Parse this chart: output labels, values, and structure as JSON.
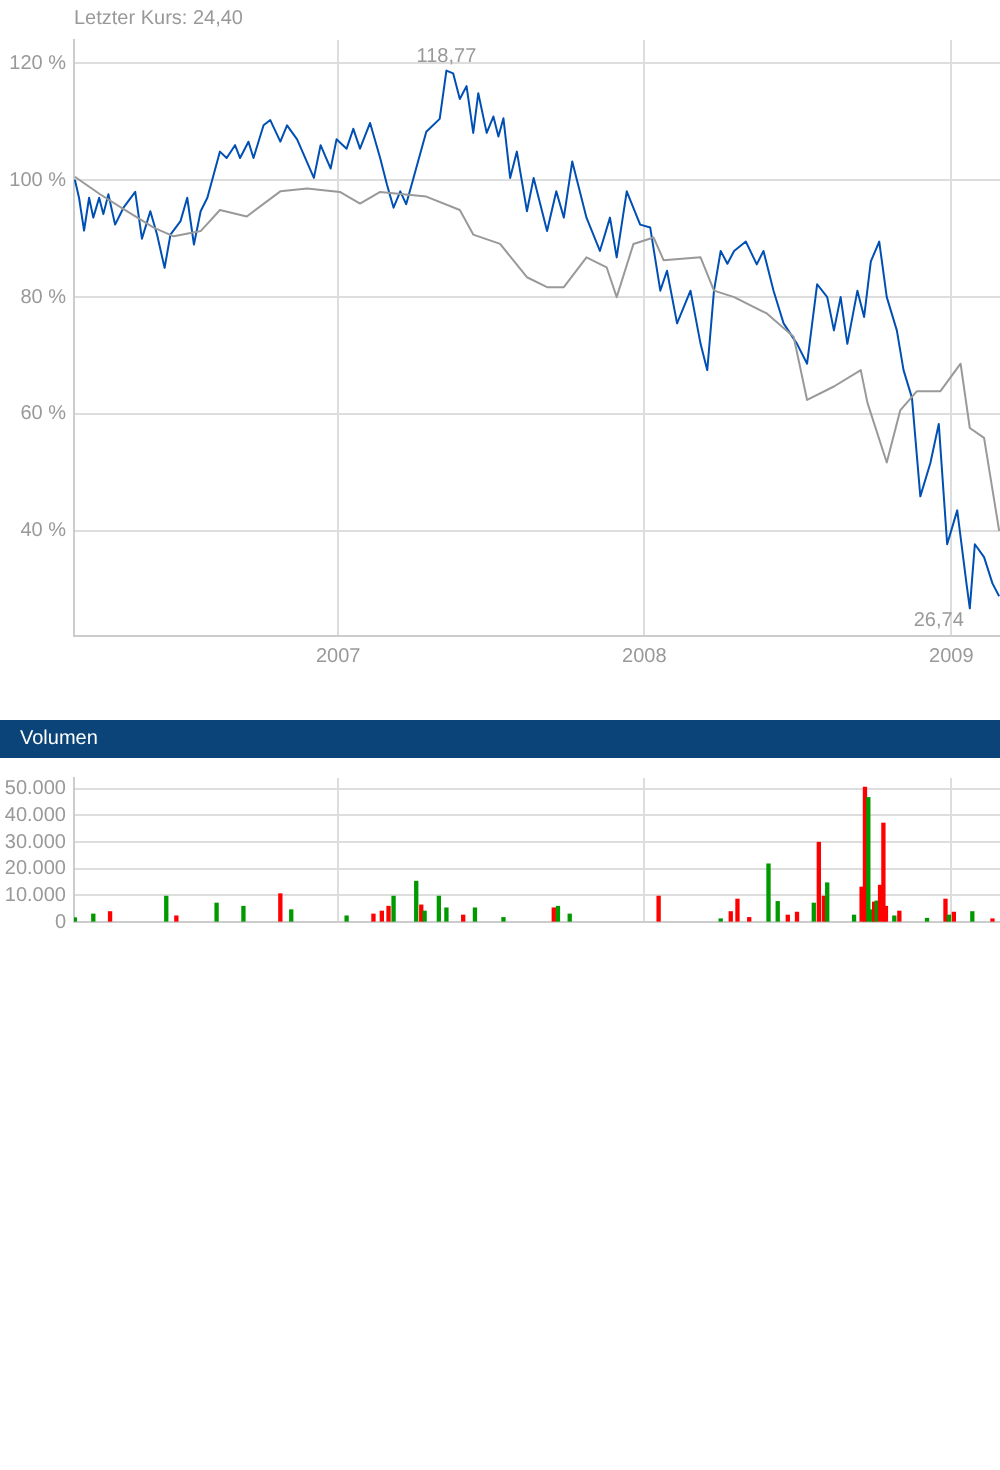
{
  "chart_data": [
    {
      "type": "line",
      "annotations": [
        "Letzter Kurs: 24,40",
        {
          "text": "118,77",
          "x": "2007-05-10",
          "y": 118.77
        },
        {
          "text": "26,74",
          "x": "2009-01-23",
          "y": 26.74
        }
      ],
      "xlim": [
        "2006-02-20",
        "2009-02-28"
      ],
      "xticks": [
        {
          "value": "2007-01-01",
          "label": "2007"
        },
        {
          "value": "2008-01-01",
          "label": "2008"
        },
        {
          "value": "2009-01-01",
          "label": "2009"
        }
      ],
      "ylim": [
        22,
        124
      ],
      "yticks": [
        {
          "value": 40,
          "label": "40 %"
        },
        {
          "value": 60,
          "label": "60 %"
        },
        {
          "value": 80,
          "label": "80 %"
        },
        {
          "value": 100,
          "label": "100 %"
        },
        {
          "value": 120,
          "label": "120 %"
        }
      ],
      "grid": true,
      "series": [
        {
          "color": "#999999",
          "x": [
            "2006-02-21",
            "2006-03-23",
            "2006-04-24",
            "2006-05-26",
            "2006-06-19",
            "2006-07-21",
            "2006-08-13",
            "2006-09-14",
            "2006-10-24",
            "2006-11-25",
            "2007-01-03",
            "2007-01-27",
            "2007-02-20",
            "2007-04-16",
            "2007-05-26",
            "2007-06-11",
            "2007-07-13",
            "2007-08-14",
            "2007-09-07",
            "2007-09-27",
            "2007-10-24",
            "2007-11-17",
            "2007-11-29",
            "2007-12-19",
            "2008-01-12",
            "2008-01-24",
            "2008-03-08",
            "2008-03-24",
            "2008-04-17",
            "2008-05-26",
            "2008-06-27",
            "2008-07-13",
            "2008-08-14",
            "2008-09-15",
            "2008-09-23",
            "2008-10-16",
            "2008-11-01",
            "2008-11-21",
            "2008-12-19",
            "2009-01-12",
            "2009-01-23",
            "2009-02-09",
            "2009-02-27"
          ],
          "values": [
            100.6,
            97.6,
            94.7,
            91.9,
            90.4,
            91.3,
            94.9,
            93.8,
            98.1,
            98.6,
            98,
            96,
            98,
            97.2,
            94.9,
            90.7,
            89.1,
            83.4,
            81.7,
            81.7,
            86.8,
            85.1,
            80,
            89.1,
            90.2,
            86.3,
            86.8,
            81.1,
            80,
            77.2,
            73.2,
            62.4,
            64.7,
            67.5,
            61.9,
            51.7,
            60.6,
            63.9,
            63.9,
            68.6,
            57.6,
            55.9,
            40
          ]
        },
        {
          "color": "#0050b4",
          "x": [
            "2006-02-21",
            "2006-02-26",
            "2006-03-04",
            "2006-03-10",
            "2006-03-15",
            "2006-03-22",
            "2006-03-27",
            "2006-04-02",
            "2006-04-10",
            "2006-04-20",
            "2006-05-04",
            "2006-05-12",
            "2006-05-22",
            "2006-05-30",
            "2006-06-08",
            "2006-06-15",
            "2006-06-27",
            "2006-07-05",
            "2006-07-13",
            "2006-07-21",
            "2006-07-29",
            "2006-08-13",
            "2006-08-21",
            "2006-08-31",
            "2006-09-06",
            "2006-09-16",
            "2006-09-22",
            "2006-10-04",
            "2006-10-12",
            "2006-10-24",
            "2006-11-01",
            "2006-11-13",
            "2006-12-03",
            "2006-12-11",
            "2006-12-23",
            "2006-12-30",
            "2007-01-11",
            "2007-01-19",
            "2007-01-27",
            "2007-02-08",
            "2007-02-20",
            "2007-02-28",
            "2007-03-08",
            "2007-03-16",
            "2007-03-23",
            "2007-04-01",
            "2007-04-16",
            "2007-05-02",
            "2007-05-10",
            "2007-05-18",
            "2007-05-26",
            "2007-06-03",
            "2007-06-11",
            "2007-06-17",
            "2007-06-27",
            "2007-07-05",
            "2007-07-11",
            "2007-07-17",
            "2007-07-25",
            "2007-08-02",
            "2007-08-14",
            "2007-08-22",
            "2007-09-07",
            "2007-09-18",
            "2007-09-27",
            "2007-10-07",
            "2007-10-24",
            "2007-11-09",
            "2007-11-21",
            "2007-11-29",
            "2007-12-11",
            "2007-12-27",
            "2008-01-08",
            "2008-01-20",
            "2008-01-28",
            "2008-02-09",
            "2008-02-25",
            "2008-03-08",
            "2008-03-16",
            "2008-03-24",
            "2008-04-01",
            "2008-04-09",
            "2008-04-17",
            "2008-05-01",
            "2008-05-14",
            "2008-05-22",
            "2008-06-03",
            "2008-06-15",
            "2008-07-01",
            "2008-07-13",
            "2008-07-25",
            "2008-08-06",
            "2008-08-14",
            "2008-08-22",
            "2008-08-30",
            "2008-09-11",
            "2008-09-19",
            "2008-09-27",
            "2008-10-07",
            "2008-10-16",
            "2008-10-28",
            "2008-11-05",
            "2008-11-15",
            "2008-11-25",
            "2008-12-07",
            "2008-12-17",
            "2008-12-27",
            "2009-01-08",
            "2009-01-19",
            "2009-01-23",
            "2009-01-29",
            "2009-02-09",
            "2009-02-19",
            "2009-02-27"
          ],
          "values": [
            100.1,
            97,
            91.4,
            97,
            93.6,
            97,
            94.2,
            97.6,
            92.4,
            95.3,
            98,
            90,
            94.7,
            90.7,
            85,
            90.7,
            93,
            97,
            89,
            94.7,
            97,
            104.9,
            103.8,
            106,
            103.8,
            106.6,
            103.8,
            109.4,
            110.3,
            106.6,
            109.4,
            107,
            100.4,
            106,
            102,
            107,
            105.4,
            108.8,
            105.4,
            109.8,
            103.8,
            99.3,
            95.3,
            98.1,
            95.9,
            100.5,
            108.3,
            110.5,
            118.77,
            118.3,
            113.9,
            116.1,
            108.1,
            114.9,
            108.1,
            110.9,
            107.5,
            110.6,
            100.4,
            104.9,
            94.7,
            100.4,
            91.3,
            98.1,
            93.6,
            103.2,
            93.6,
            87.9,
            93.6,
            86.8,
            98.1,
            92.4,
            91.9,
            81.1,
            84.5,
            75.5,
            81.1,
            72,
            67.5,
            81.1,
            87.9,
            85.7,
            87.9,
            89.5,
            85.6,
            87.9,
            81.1,
            75.5,
            72,
            68.6,
            82.2,
            80,
            74.3,
            80,
            72,
            81.1,
            76.6,
            86.1,
            89.5,
            80,
            74.3,
            67.5,
            62.8,
            45.9,
            51.6,
            58.3,
            37.7,
            43.5,
            31,
            26.74,
            37.7,
            35.5,
            31,
            28.8
          ]
        }
      ]
    },
    {
      "type": "bar",
      "title": "Volumen",
      "xlim": [
        "2006-02-20",
        "2009-02-28"
      ],
      "xticks": [
        {
          "value": "2007-01-01",
          "label": null
        },
        {
          "value": "2008-01-01",
          "label": null
        },
        {
          "value": "2009-01-01",
          "label": null
        }
      ],
      "ylim": [
        0,
        54000
      ],
      "yticks": [
        0,
        {
          "value": 10000,
          "label": "10.000"
        },
        {
          "value": 20000,
          "label": "20.000"
        },
        {
          "value": 30000,
          "label": "30.000"
        },
        {
          "value": 40000,
          "label": "40.000"
        },
        {
          "value": 50000,
          "label": "50.000"
        }
      ],
      "grid": true,
      "tick_labels": "y",
      "x": [
        "2006-02-21",
        "2006-03-15",
        "2006-04-04",
        "2006-06-10",
        "2006-06-22",
        "2006-08-09",
        "2006-09-10",
        "2006-10-24",
        "2006-11-06",
        "2007-01-11",
        "2007-02-12",
        "2007-02-22",
        "2007-03-02",
        "2007-03-08",
        "2007-04-04",
        "2007-04-10",
        "2007-04-14",
        "2007-05-01",
        "2007-05-10",
        "2007-05-30",
        "2007-06-13",
        "2007-07-17",
        "2007-09-15",
        "2007-09-20",
        "2007-10-04",
        "2008-01-18",
        "2008-04-01",
        "2008-04-13",
        "2008-04-21",
        "2008-05-05",
        "2008-05-28",
        "2008-06-08",
        "2008-06-20",
        "2008-07-01",
        "2008-07-21",
        "2008-07-27",
        "2008-08-02",
        "2008-08-06",
        "2008-09-07",
        "2008-09-16",
        "2008-09-20",
        "2008-09-24",
        "2008-09-28",
        "2008-10-01",
        "2008-10-04",
        "2008-10-08",
        "2008-10-12",
        "2008-10-15",
        "2008-10-25",
        "2008-10-31",
        "2008-12-03",
        "2008-12-25",
        "2008-12-29",
        "2009-01-04",
        "2009-01-26",
        "2009-02-19"
      ],
      "values": [
        1500,
        2900,
        3800,
        9600,
        2200,
        7000,
        5800,
        10500,
        4500,
        2200,
        2900,
        4000,
        5800,
        9600,
        15200,
        6300,
        4000,
        9600,
        5200,
        2500,
        5200,
        1600,
        5200,
        5800,
        2900,
        9600,
        1100,
        3800,
        8500,
        1600,
        21700,
        7600,
        2500,
        3600,
        7000,
        29800,
        9600,
        14600,
        2500,
        13000,
        50500,
        46600,
        4500,
        7400,
        7800,
        13700,
        37000,
        5800,
        2200,
        4000,
        1300,
        8500,
        2500,
        3600,
        3800,
        1100
      ],
      "colors": [
        "#009900",
        "#009900",
        "#ff0000",
        "#009900",
        "#ff0000",
        "#009900",
        "#009900",
        "#ff0000",
        "#009900",
        "#009900",
        "#ff0000",
        "#ff0000",
        "#ff0000",
        "#009900",
        "#009900",
        "#ff0000",
        "#009900",
        "#009900",
        "#009900",
        "#ff0000",
        "#009900",
        "#009900",
        "#ff0000",
        "#009900",
        "#009900",
        "#ff0000",
        "#009900",
        "#ff0000",
        "#ff0000",
        "#ff0000",
        "#009900",
        "#009900",
        "#ff0000",
        "#ff0000",
        "#009900",
        "#ff0000",
        "#ff0000",
        "#009900",
        "#009900",
        "#ff0000",
        "#ff0000",
        "#009900",
        "#009900",
        "#ff0000",
        "#009900",
        "#ff0000",
        "#ff0000",
        "#ff0000",
        "#009900",
        "#ff0000",
        "#009900",
        "#ff0000",
        "#009900",
        "#ff0000",
        "#009900",
        "#ff0000"
      ]
    }
  ]
}
